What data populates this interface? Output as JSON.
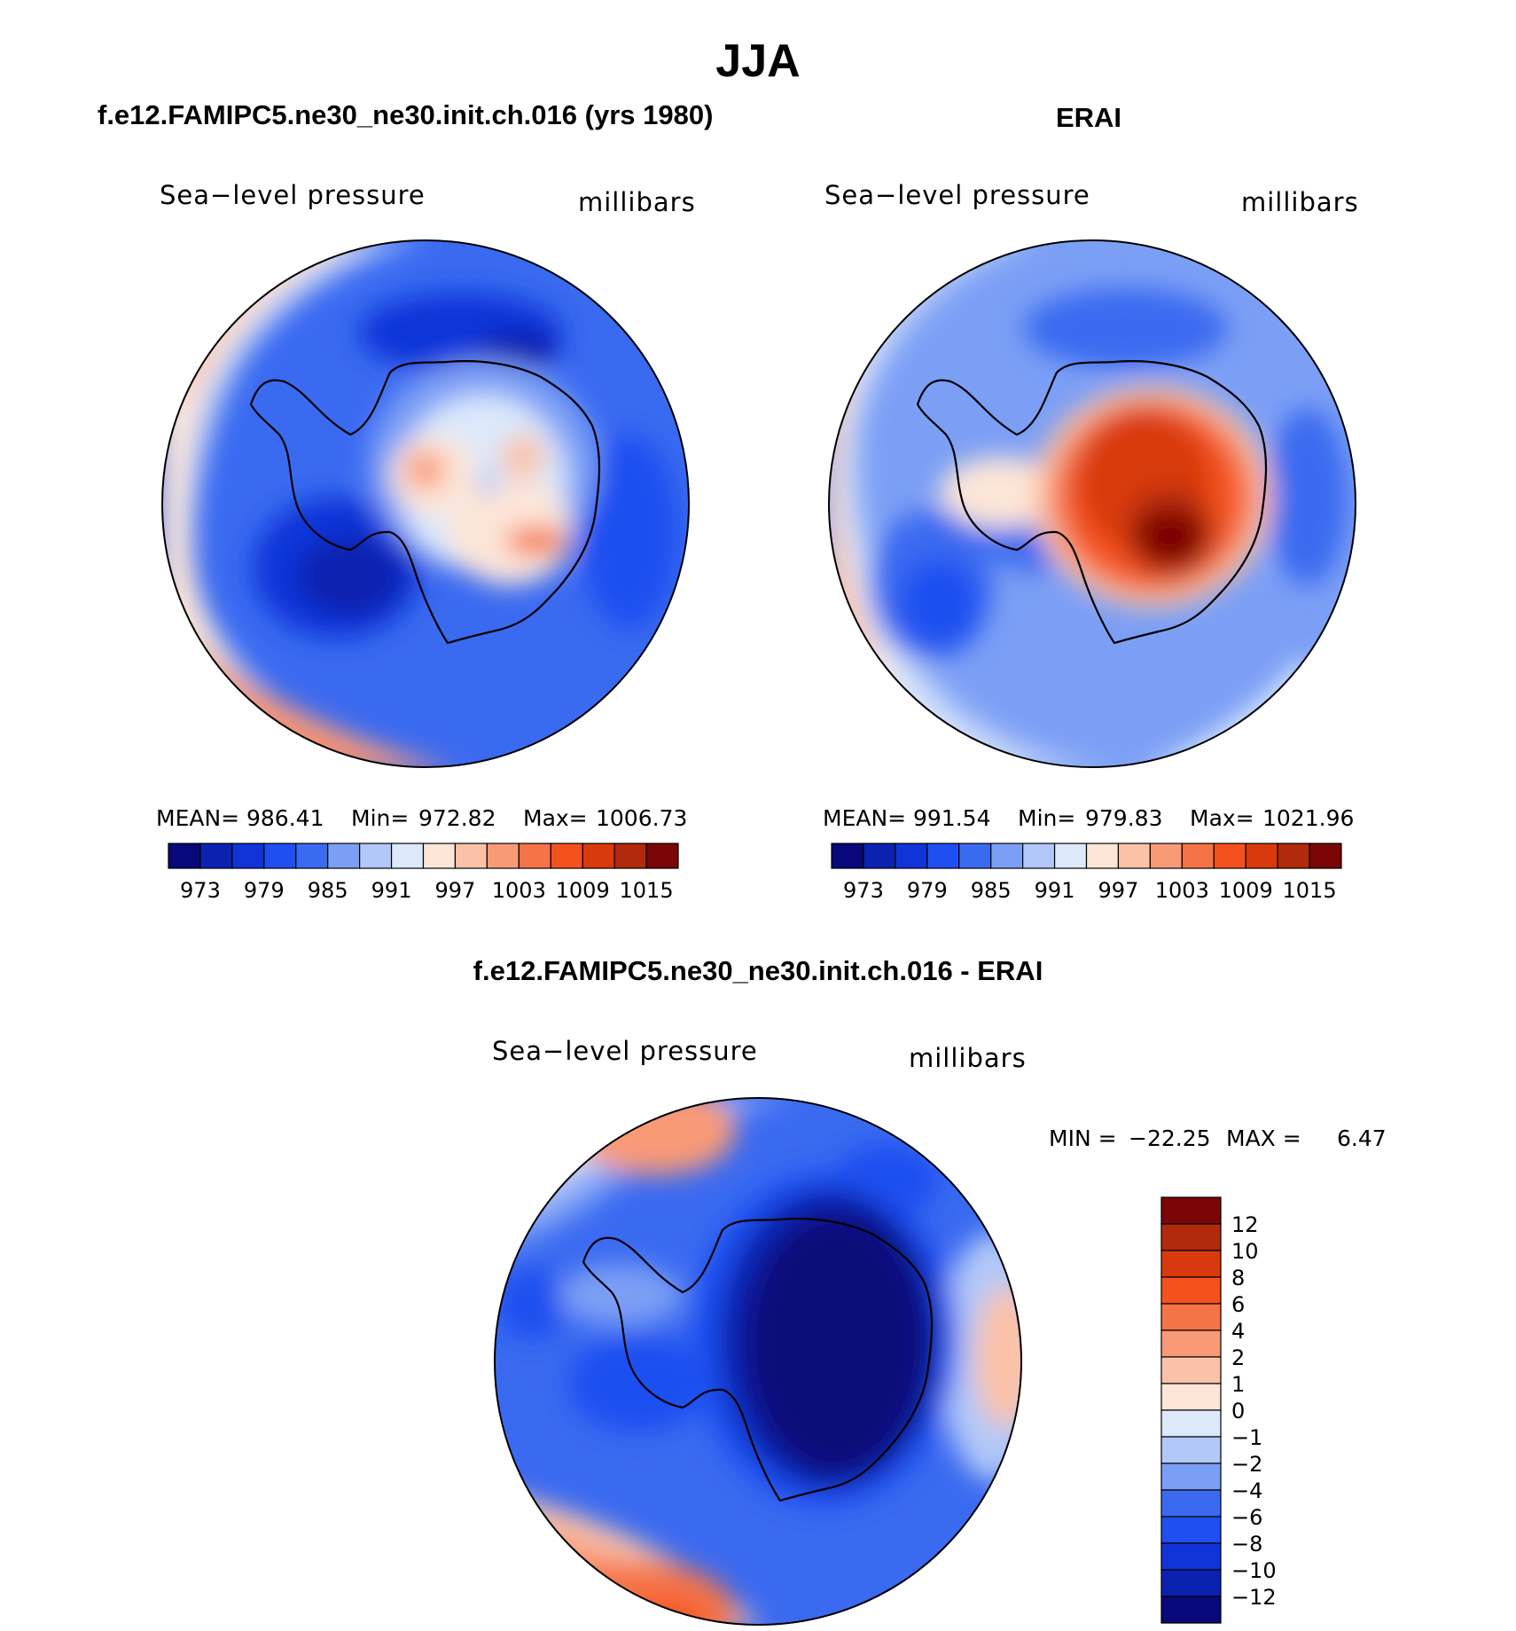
{
  "title": "JJA",
  "panels": [
    {
      "id": "model",
      "subtitle": "f.e12.FAMIPC5.ne30_ne30.init.ch.016 (yrs 1980)",
      "left_label": "Sea−level pressure",
      "right_label": "millibars",
      "stats": {
        "mean_label": "MEAN=",
        "mean": "986.41",
        "min_label": "Min=",
        "min": "972.82",
        "max_label": "Max=",
        "max": "1006.73"
      }
    },
    {
      "id": "obs",
      "subtitle": "ERAI",
      "left_label": "Sea−level pressure",
      "right_label": "millibars",
      "stats": {
        "mean_label": "MEAN=",
        "mean": "991.54",
        "min_label": "Min=",
        "min": "979.83",
        "max_label": "Max=",
        "max": "1021.96"
      }
    },
    {
      "id": "diff",
      "subtitle": "f.e12.FAMIPC5.ne30_ne30.init.ch.016 - ERAI",
      "left_label": "Sea−level pressure",
      "right_label": "millibars",
      "stats": {
        "min_label": "MIN =",
        "min": "−22.25",
        "max_label": "MAX =",
        "max": "6.47"
      }
    }
  ],
  "colorbar_abs": {
    "orientation": "horizontal",
    "colors": [
      "#08087a",
      "#0b22b0",
      "#1034d8",
      "#1f4ff0",
      "#3a6af0",
      "#7b9ff5",
      "#b2c8f8",
      "#dce9fb",
      "#fde6d8",
      "#fbc2a8",
      "#f99a77",
      "#f57346",
      "#f4511e",
      "#d93a0d",
      "#b02a0b",
      "#7a0606"
    ],
    "ticks": [
      "973",
      "979",
      "985",
      "991",
      "997",
      "1003",
      "1009",
      "1015"
    ]
  },
  "colorbar_diff": {
    "orientation": "vertical",
    "colors": [
      "#7a0606",
      "#b02a0b",
      "#d93a0d",
      "#f4511e",
      "#f57346",
      "#f99a77",
      "#fbc2a8",
      "#fde6d8",
      "#dce9fb",
      "#b2c8f8",
      "#7b9ff5",
      "#3a6af0",
      "#1f4ff0",
      "#1034d8",
      "#0b22b0",
      "#08087a"
    ],
    "ticks": [
      "12",
      "10",
      "8",
      "6",
      "4",
      "2",
      "1",
      "0",
      "−1",
      "−2",
      "−4",
      "−6",
      "−8",
      "−10",
      "−12"
    ]
  }
}
